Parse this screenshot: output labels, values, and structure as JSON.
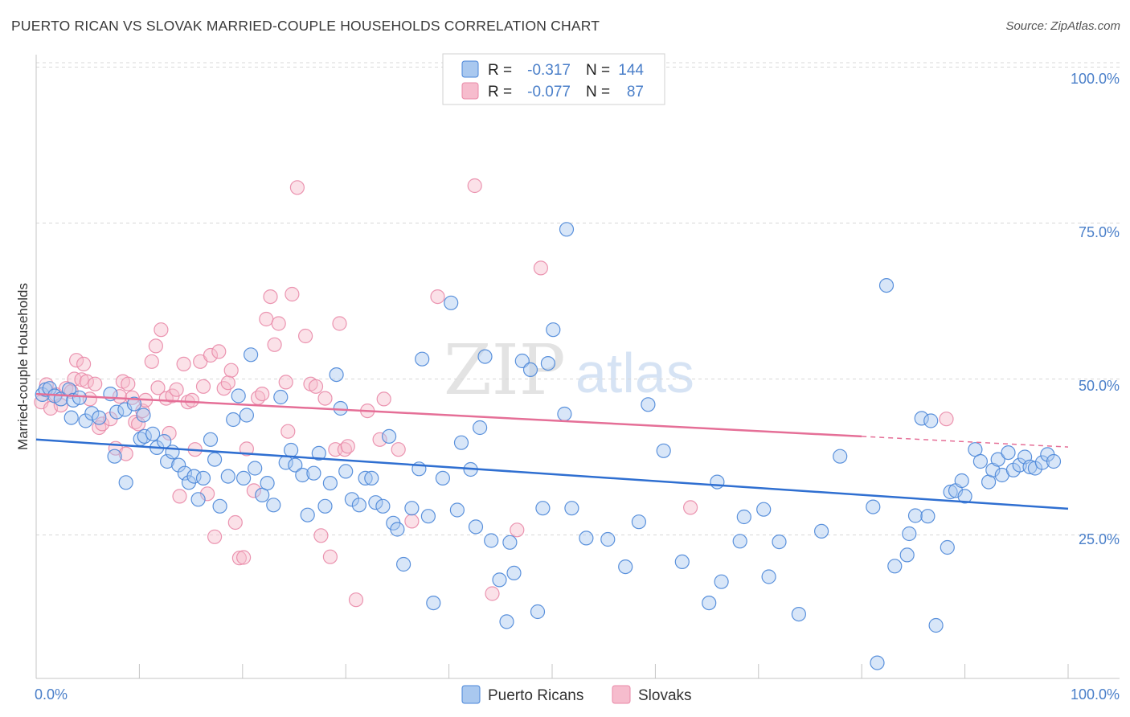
{
  "header": {
    "title": "PUERTO RICAN VS SLOVAK MARRIED-COUPLE HOUSEHOLDS CORRELATION CHART",
    "source": "Source: ZipAtlas.com"
  },
  "watermark": {
    "zip": "ZIP",
    "atlas": "atlas"
  },
  "colors": {
    "blue": "#4a86d8",
    "blue_fill": "#a9c8ef",
    "blue_line": "#2f6fd1",
    "pink": "#e98aa8",
    "pink_fill": "#f6bccd",
    "pink_line": "#e56f97",
    "axis_label": "#4a7fc9",
    "grid": "#d8d8d8"
  },
  "legend": {
    "rows": [
      {
        "series": "blue",
        "r_label": "R =",
        "r_value": "-0.317",
        "n_label": "N =",
        "n_value": "144"
      },
      {
        "series": "pink",
        "r_label": "R =",
        "r_value": "-0.077",
        "n_label": "N =",
        "n_value": "87"
      }
    ]
  },
  "bottom_legend": [
    "Puerto Ricans",
    "Slovaks"
  ],
  "chart_data": {
    "type": "scatter",
    "title": "PUERTO RICAN VS SLOVAK MARRIED-COUPLE HOUSEHOLDS CORRELATION CHART",
    "ylabel": "Married-couple Households",
    "xlabel": "",
    "x_tick_labels": [
      "0.0%",
      "100.0%"
    ],
    "y_tick_labels": [
      "100.0%",
      "75.0%",
      "50.0%",
      "25.0%"
    ],
    "y_ticks": [
      100,
      75,
      50,
      25
    ],
    "xlim": [
      0,
      100
    ],
    "ylim": [
      2,
      102
    ],
    "grid": true,
    "legend_position": "top-center",
    "series": [
      {
        "name": "Puerto Ricans",
        "color": "blue",
        "r": -0.317,
        "n": 144,
        "trend": {
          "x": [
            0,
            100
          ],
          "y": [
            40.3,
            29.2
          ]
        },
        "points": [
          [
            0.6,
            47.5
          ],
          [
            0.9,
            48.3
          ],
          [
            1.3,
            48.5
          ],
          [
            1.8,
            47.3
          ],
          [
            2.4,
            46.8
          ],
          [
            3.2,
            48.3
          ],
          [
            3.6,
            46.6
          ],
          [
            4.2,
            47.0
          ],
          [
            3.4,
            43.8
          ],
          [
            4.8,
            43.3
          ],
          [
            5.4,
            44.5
          ],
          [
            6.1,
            43.8
          ],
          [
            7.2,
            47.6
          ],
          [
            7.8,
            44.7
          ],
          [
            8.6,
            45.1
          ],
          [
            9.5,
            46.0
          ],
          [
            10.4,
            44.2
          ],
          [
            7.6,
            37.6
          ],
          [
            8.7,
            33.4
          ],
          [
            10.1,
            40.4
          ],
          [
            10.5,
            40.8
          ],
          [
            11.3,
            41.2
          ],
          [
            11.7,
            39.0
          ],
          [
            12.4,
            40.0
          ],
          [
            12.7,
            36.8
          ],
          [
            13.2,
            38.3
          ],
          [
            13.8,
            36.2
          ],
          [
            14.4,
            34.9
          ],
          [
            14.8,
            33.4
          ],
          [
            15.3,
            34.4
          ],
          [
            15.7,
            30.7
          ],
          [
            16.2,
            34.1
          ],
          [
            16.9,
            40.3
          ],
          [
            17.3,
            37.1
          ],
          [
            17.8,
            29.6
          ],
          [
            18.6,
            34.4
          ],
          [
            19.1,
            43.5
          ],
          [
            19.6,
            47.3
          ],
          [
            20.1,
            34.1
          ],
          [
            20.4,
            44.2
          ],
          [
            20.8,
            53.9
          ],
          [
            21.2,
            35.7
          ],
          [
            21.9,
            31.4
          ],
          [
            22.4,
            33.3
          ],
          [
            23.0,
            29.8
          ],
          [
            23.7,
            47.1
          ],
          [
            24.2,
            36.6
          ],
          [
            24.7,
            38.6
          ],
          [
            25.1,
            36.2
          ],
          [
            25.8,
            34.6
          ],
          [
            26.3,
            28.2
          ],
          [
            26.9,
            34.9
          ],
          [
            27.4,
            38.1
          ],
          [
            28.0,
            29.6
          ],
          [
            28.5,
            33.3
          ],
          [
            29.1,
            50.7
          ],
          [
            29.5,
            45.3
          ],
          [
            30.0,
            35.2
          ],
          [
            30.6,
            30.7
          ],
          [
            31.3,
            29.8
          ],
          [
            31.9,
            34.1
          ],
          [
            32.5,
            34.1
          ],
          [
            32.9,
            30.2
          ],
          [
            33.6,
            29.6
          ],
          [
            34.2,
            40.8
          ],
          [
            34.6,
            26.9
          ],
          [
            35.0,
            25.9
          ],
          [
            35.6,
            20.3
          ],
          [
            36.4,
            29.3
          ],
          [
            37.1,
            35.6
          ],
          [
            37.4,
            53.2
          ],
          [
            38.0,
            28.0
          ],
          [
            38.5,
            14.1
          ],
          [
            39.4,
            34.1
          ],
          [
            40.2,
            62.2
          ],
          [
            40.8,
            29.0
          ],
          [
            41.2,
            39.8
          ],
          [
            42.1,
            35.5
          ],
          [
            42.6,
            26.3
          ],
          [
            43.0,
            42.2
          ],
          [
            43.5,
            53.6
          ],
          [
            44.1,
            24.1
          ],
          [
            44.9,
            17.8
          ],
          [
            45.6,
            11.1
          ],
          [
            45.9,
            23.8
          ],
          [
            46.3,
            18.9
          ],
          [
            47.1,
            52.9
          ],
          [
            47.9,
            51.5
          ],
          [
            48.6,
            12.7
          ],
          [
            49.1,
            29.3
          ],
          [
            49.6,
            52.5
          ],
          [
            50.1,
            57.9
          ],
          [
            51.2,
            44.4
          ],
          [
            51.4,
            74.0
          ],
          [
            51.9,
            29.3
          ],
          [
            53.3,
            24.5
          ],
          [
            55.4,
            24.3
          ],
          [
            57.1,
            19.9
          ],
          [
            58.4,
            27.1
          ],
          [
            59.3,
            45.9
          ],
          [
            60.8,
            38.5
          ],
          [
            62.6,
            20.7
          ],
          [
            65.2,
            14.1
          ],
          [
            66.0,
            33.5
          ],
          [
            66.4,
            17.5
          ],
          [
            68.2,
            24.0
          ],
          [
            68.6,
            27.9
          ],
          [
            70.5,
            29.1
          ],
          [
            71.0,
            18.3
          ],
          [
            72.0,
            23.9
          ],
          [
            73.9,
            12.3
          ],
          [
            76.1,
            25.6
          ],
          [
            77.9,
            37.6
          ],
          [
            81.1,
            29.5
          ],
          [
            81.5,
            4.5
          ],
          [
            82.4,
            65.0
          ],
          [
            83.2,
            20.0
          ],
          [
            84.4,
            21.8
          ],
          [
            84.6,
            25.2
          ],
          [
            85.2,
            28.1
          ],
          [
            85.8,
            43.7
          ],
          [
            86.4,
            28.0
          ],
          [
            86.7,
            43.3
          ],
          [
            87.2,
            10.5
          ],
          [
            88.3,
            23.0
          ],
          [
            88.6,
            31.9
          ],
          [
            89.1,
            32.1
          ],
          [
            89.7,
            33.7
          ],
          [
            90.0,
            31.2
          ],
          [
            91.0,
            38.7
          ],
          [
            91.5,
            36.8
          ],
          [
            92.3,
            33.5
          ],
          [
            92.7,
            35.4
          ],
          [
            93.2,
            37.1
          ],
          [
            93.6,
            34.6
          ],
          [
            94.2,
            38.2
          ],
          [
            94.7,
            35.4
          ],
          [
            95.3,
            36.2
          ],
          [
            95.8,
            37.5
          ],
          [
            96.3,
            35.9
          ],
          [
            96.8,
            35.7
          ],
          [
            97.5,
            36.6
          ],
          [
            98.0,
            37.9
          ],
          [
            98.6,
            36.8
          ]
        ]
      },
      {
        "name": "Slovaks",
        "color": "pink",
        "r": -0.077,
        "n": 87,
        "trend": {
          "x": [
            0,
            80
          ],
          "y": [
            47.6,
            40.8
          ]
        },
        "trend_dashed": {
          "x": [
            80,
            100
          ],
          "y": [
            40.8,
            39.1
          ]
        },
        "points": [
          [
            0.5,
            46.3
          ],
          [
            1.0,
            49.1
          ],
          [
            1.4,
            45.3
          ],
          [
            1.9,
            47.5
          ],
          [
            2.4,
            45.8
          ],
          [
            2.9,
            48.5
          ],
          [
            3.4,
            48.0
          ],
          [
            3.7,
            50.0
          ],
          [
            3.9,
            53.0
          ],
          [
            4.4,
            49.9
          ],
          [
            4.6,
            52.4
          ],
          [
            4.9,
            49.6
          ],
          [
            5.2,
            46.8
          ],
          [
            5.7,
            49.2
          ],
          [
            6.1,
            42.2
          ],
          [
            6.4,
            42.8
          ],
          [
            7.2,
            43.6
          ],
          [
            7.7,
            38.9
          ],
          [
            8.1,
            47.2
          ],
          [
            8.4,
            49.6
          ],
          [
            8.9,
            49.2
          ],
          [
            8.7,
            38.0
          ],
          [
            9.3,
            47.0
          ],
          [
            9.6,
            43.1
          ],
          [
            9.9,
            42.8
          ],
          [
            10.3,
            44.9
          ],
          [
            10.6,
            46.6
          ],
          [
            11.2,
            52.8
          ],
          [
            11.6,
            55.3
          ],
          [
            11.8,
            48.6
          ],
          [
            12.1,
            57.9
          ],
          [
            12.6,
            46.9
          ],
          [
            12.9,
            41.3
          ],
          [
            13.2,
            47.3
          ],
          [
            13.6,
            48.3
          ],
          [
            13.9,
            31.2
          ],
          [
            14.3,
            52.4
          ],
          [
            14.7,
            46.3
          ],
          [
            15.1,
            46.6
          ],
          [
            15.4,
            38.7
          ],
          [
            15.9,
            52.8
          ],
          [
            16.2,
            48.8
          ],
          [
            16.6,
            31.6
          ],
          [
            16.9,
            53.8
          ],
          [
            17.3,
            24.7
          ],
          [
            17.7,
            54.4
          ],
          [
            18.2,
            48.5
          ],
          [
            18.6,
            49.4
          ],
          [
            18.9,
            51.4
          ],
          [
            19.3,
            27.0
          ],
          [
            19.7,
            21.3
          ],
          [
            20.1,
            21.4
          ],
          [
            20.4,
            38.8
          ],
          [
            21.1,
            32.1
          ],
          [
            21.5,
            47.0
          ],
          [
            21.9,
            47.6
          ],
          [
            22.3,
            59.6
          ],
          [
            22.7,
            63.2
          ],
          [
            23.1,
            55.5
          ],
          [
            23.5,
            58.9
          ],
          [
            24.2,
            49.5
          ],
          [
            24.4,
            41.6
          ],
          [
            24.8,
            63.6
          ],
          [
            25.3,
            80.7
          ],
          [
            26.1,
            56.9
          ],
          [
            26.6,
            49.2
          ],
          [
            27.1,
            48.8
          ],
          [
            27.6,
            24.9
          ],
          [
            28.0,
            46.9
          ],
          [
            28.5,
            21.5
          ],
          [
            29.0,
            38.7
          ],
          [
            29.4,
            58.9
          ],
          [
            29.9,
            38.7
          ],
          [
            30.2,
            39.2
          ],
          [
            31.0,
            14.6
          ],
          [
            32.1,
            44.9
          ],
          [
            33.3,
            40.3
          ],
          [
            33.7,
            46.8
          ],
          [
            35.1,
            38.7
          ],
          [
            36.4,
            27.2
          ],
          [
            38.9,
            63.2
          ],
          [
            42.5,
            81.0
          ],
          [
            44.2,
            15.6
          ],
          [
            46.6,
            25.8
          ],
          [
            48.9,
            67.8
          ],
          [
            63.4,
            29.4
          ],
          [
            88.2,
            43.6
          ]
        ]
      }
    ]
  }
}
